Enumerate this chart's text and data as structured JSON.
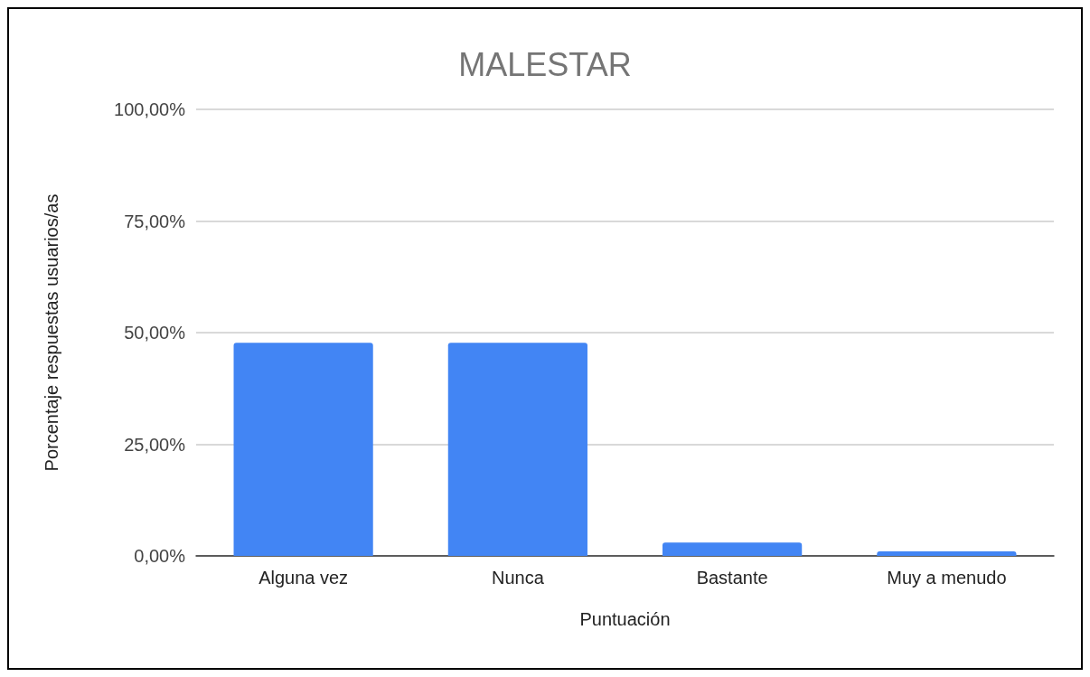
{
  "chart_data": {
    "type": "bar",
    "title": "MALESTAR",
    "xlabel": "Puntuación",
    "ylabel": "Porcentaje respuestas usuarios/as",
    "categories": [
      "Alguna vez",
      "Nunca",
      "Bastante",
      "Muy a menudo"
    ],
    "values": [
      47.7,
      47.7,
      3.0,
      1.0
    ],
    "color": "#4285f4",
    "ylim": [
      0,
      100
    ],
    "yticks": [
      {
        "value": 0,
        "label": "0,00%"
      },
      {
        "value": 25,
        "label": "25,00%"
      },
      {
        "value": 50,
        "label": "50,00%"
      },
      {
        "value": 75,
        "label": "75,00%"
      },
      {
        "value": 100,
        "label": "100,00%"
      }
    ],
    "grid": "y"
  }
}
